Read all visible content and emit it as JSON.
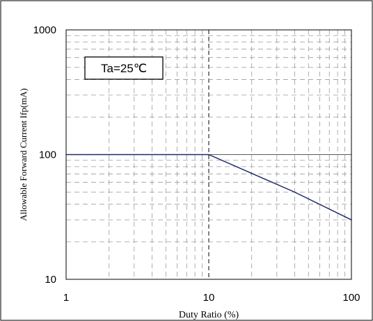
{
  "chart_data": {
    "type": "line",
    "xlabel": "Duty Ratio (%)",
    "ylabel": "Allowable Forward Current Ifp(mA)",
    "annotation": "Ta=25℃",
    "xscale": "log",
    "yscale": "log",
    "xlim": [
      1,
      100
    ],
    "ylim": [
      10,
      1000
    ],
    "x_ticks": [
      1,
      10,
      100
    ],
    "x_tick_labels": [
      "1",
      "10",
      "100"
    ],
    "y_ticks": [
      10,
      100,
      1000
    ],
    "y_tick_labels": [
      "10",
      "100",
      "1000"
    ],
    "grid": true,
    "series": [
      {
        "x": [
          1,
          10,
          40,
          100
        ],
        "y": [
          100,
          100,
          50,
          30
        ],
        "color": "#1f2a6b"
      }
    ]
  }
}
